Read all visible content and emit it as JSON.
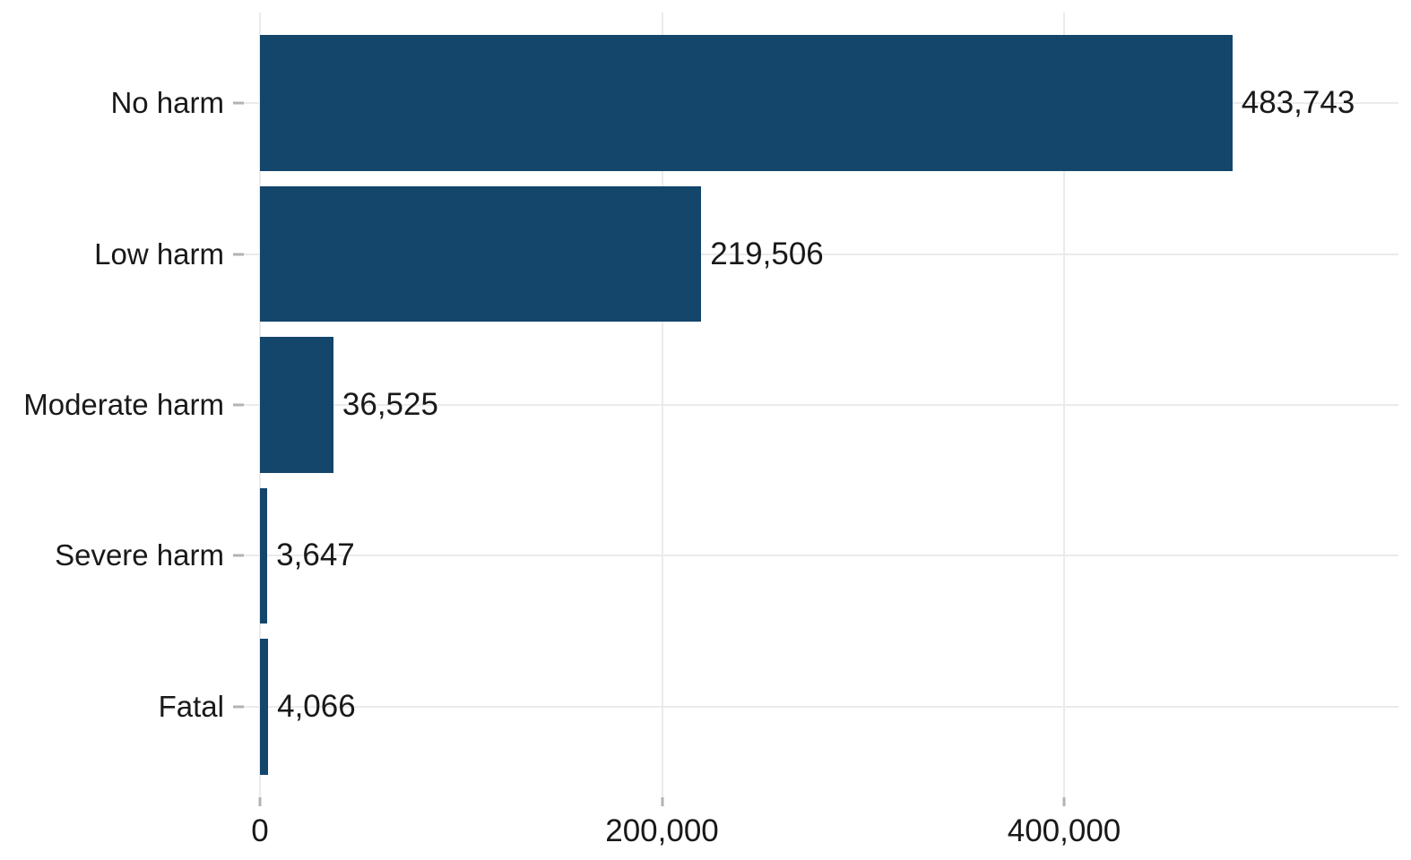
{
  "chart_data": {
    "type": "bar",
    "orientation": "horizontal",
    "title": "",
    "xlabel": "",
    "ylabel": "",
    "categories": [
      "No harm",
      "Low harm",
      "Moderate harm",
      "Severe harm",
      "Fatal"
    ],
    "values": [
      483743,
      219506,
      36525,
      3647,
      4066
    ],
    "value_labels": [
      "483,743",
      "219,506",
      "36,525",
      "3,647",
      "4,066"
    ],
    "x_ticks": [
      0,
      200000,
      400000
    ],
    "x_tick_labels": [
      "0",
      "200,000",
      "400,000"
    ],
    "xlim": [
      0,
      566000
    ],
    "grid": "major-x-and-y",
    "legend": "none",
    "colors": {
      "bar": "#14456B",
      "gridline": "#ebebeb",
      "tick": "#b3b3b3",
      "text": "#191919",
      "background": "#ffffff"
    }
  }
}
